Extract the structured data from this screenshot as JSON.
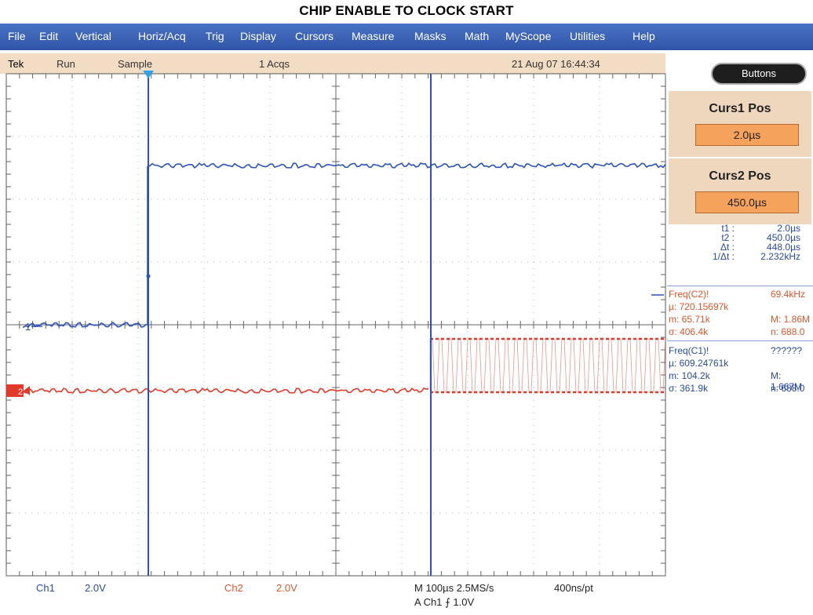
{
  "title": "CHIP ENABLE TO CLOCK START",
  "menu": [
    "File",
    "Edit",
    "Vertical",
    "Horiz/Acq",
    "Trig",
    "Display",
    "Cursors",
    "Measure",
    "Masks",
    "Math",
    "MyScope",
    "Utilities",
    "Help"
  ],
  "status": {
    "brand": "Tek",
    "run": "Run",
    "mode": "Sample",
    "acqs": "1 Acqs",
    "datetime": "21 Aug 07 16:44:34"
  },
  "side": {
    "buttons_label": "Buttons",
    "curs1": {
      "label": "Curs1 Pos",
      "value": "2.0µs"
    },
    "curs2": {
      "label": "Curs2 Pos",
      "value": "450.0µs"
    },
    "readout": [
      {
        "label": "t1 :",
        "value": "2.0µs"
      },
      {
        "label": "t2 :",
        "value": "450.0µs"
      },
      {
        "label": "Δt :",
        "value": "448.0µs"
      },
      {
        "label": "1/Δt :",
        "value": "2.232kHz"
      }
    ]
  },
  "measurements": [
    {
      "name": "Freq(C2)!",
      "value": "69.4kHz",
      "mean": "µ: 720.15697k",
      "min": "m: 65.71k",
      "max": "M: 1.86M",
      "sigma": "σ: 406.4k",
      "n": "n: 688.0",
      "color": "#e0552a"
    },
    {
      "name": "Freq(C1)!",
      "value": "??????",
      "mean": "µ: 609.24761k",
      "min": "m: 104.2k",
      "max": "M: 1.667M",
      "sigma": "σ: 361.9k",
      "n": "n: 688.0",
      "color": "#2a4aa6"
    }
  ],
  "bottom": {
    "ch1": "Ch1",
    "ch1_scale": "2.0V",
    "ch2": "Ch2",
    "ch2_scale": "2.0V",
    "timebase": "M 100µs 2.5MS/s",
    "record": "400ns/pt",
    "trigger": "A  Ch1  ⨍  1.0V"
  },
  "markers": {
    "ch1": "1",
    "ch2": "2"
  },
  "colors": {
    "ch1": "#2a52b8",
    "ch2": "#e23a2a",
    "menubar": "#3a62b8",
    "status": "#f3dcc4"
  }
}
